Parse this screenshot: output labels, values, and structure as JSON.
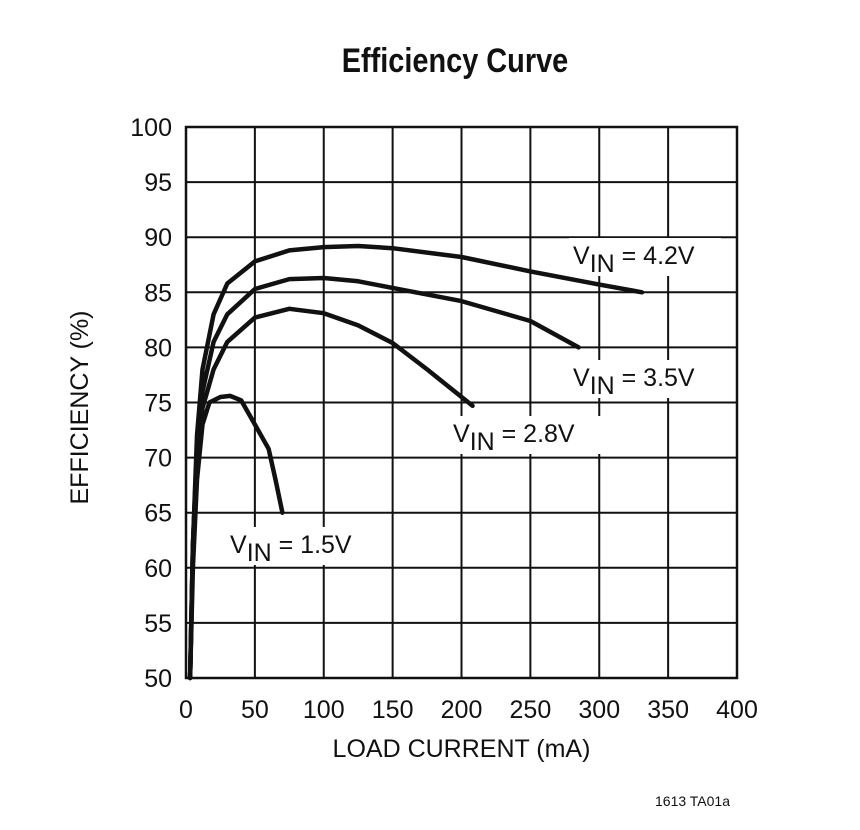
{
  "chart_data": {
    "type": "line",
    "title": "Efficiency Curve",
    "xlabel": "LOAD CURRENT (mA)",
    "ylabel": "EFFICIENCY (%)",
    "xlim": [
      0,
      400
    ],
    "ylim": [
      50,
      100
    ],
    "xticks": [
      0,
      50,
      100,
      150,
      200,
      250,
      300,
      350,
      400
    ],
    "yticks": [
      50,
      55,
      60,
      65,
      70,
      75,
      80,
      85,
      90,
      95,
      100
    ],
    "grid": true,
    "series": [
      {
        "name": "VIN = 4.2V",
        "label_main": "V",
        "label_sub": "IN",
        "label_rest": " = 4.2V",
        "x": [
          3,
          5,
          8,
          12,
          20,
          30,
          50,
          75,
          100,
          125,
          150,
          200,
          250,
          300,
          331
        ],
        "y": [
          50,
          62,
          72,
          78,
          83,
          85.8,
          87.8,
          88.8,
          89.1,
          89.2,
          89.0,
          88.2,
          86.9,
          85.7,
          85
        ]
      },
      {
        "name": "VIN = 3.5V",
        "label_main": "V",
        "label_sub": "IN",
        "label_rest": " = 3.5V",
        "x": [
          3,
          5,
          8,
          12,
          20,
          30,
          50,
          75,
          100,
          125,
          150,
          200,
          250,
          285
        ],
        "y": [
          50,
          62,
          71,
          76,
          80.5,
          83,
          85.3,
          86.2,
          86.3,
          86.0,
          85.4,
          84.2,
          82.4,
          80
        ]
      },
      {
        "name": "VIN = 2.8V",
        "label_main": "V",
        "label_sub": "IN",
        "label_rest": " = 2.8V",
        "x": [
          3,
          5,
          8,
          12,
          20,
          30,
          50,
          75,
          100,
          125,
          150,
          175,
          208
        ],
        "y": [
          50,
          62,
          70,
          74.5,
          78,
          80.5,
          82.7,
          83.5,
          83.1,
          82,
          80.4,
          78,
          74.7
        ]
      },
      {
        "name": "VIN = 1.5V",
        "label_main": "V",
        "label_sub": "IN",
        "label_rest": " = 1.5V",
        "x": [
          3,
          5,
          8,
          12,
          17,
          25,
          32,
          40,
          50,
          60,
          65,
          70
        ],
        "y": [
          50,
          60,
          68,
          73,
          75,
          75.5,
          75.6,
          75.2,
          73,
          70.8,
          68,
          65
        ]
      }
    ]
  },
  "footer": "1613 TA01a"
}
